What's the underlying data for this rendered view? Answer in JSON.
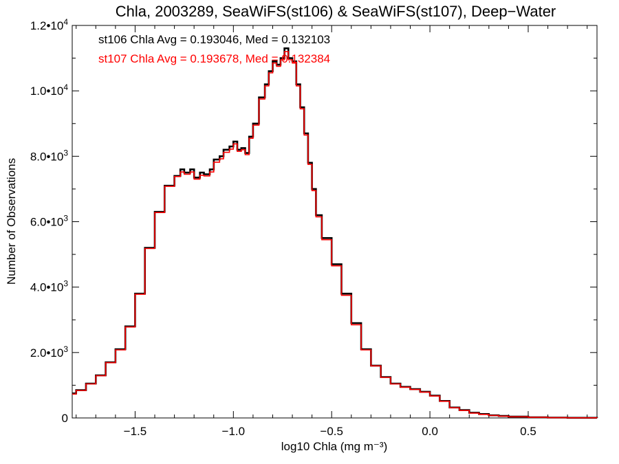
{
  "chart_data": {
    "type": "line",
    "step": true,
    "title": "Chla, 2003289, SeaWiFS(st106) & SeaWiFS(st107), Deep−Water",
    "xlabel": "log10 Chla (mg m⁻³)",
    "ylabel": "Number of Observations",
    "xlim": [
      -1.82,
      0.85
    ],
    "ylim": [
      0,
      12000
    ],
    "x_ticks": [
      -1.5,
      -1.0,
      -0.5,
      0.0,
      0.5
    ],
    "x_tick_labels": [
      "−1.5",
      "−1.0",
      "−0.5",
      "0.0",
      "0.5"
    ],
    "y_ticks": [
      0,
      2000,
      4000,
      6000,
      8000,
      10000,
      12000
    ],
    "y_tick_labels": [
      {
        "mant": "0",
        "exp": ""
      },
      {
        "mant": "2.0•10",
        "exp": "3"
      },
      {
        "mant": "4.0•10",
        "exp": "3"
      },
      {
        "mant": "6.0•10",
        "exp": "3"
      },
      {
        "mant": "8.0•10",
        "exp": "3"
      },
      {
        "mant": "1.0•10",
        "exp": "4"
      },
      {
        "mant": "1.2•10",
        "exp": "4"
      }
    ],
    "grid": false,
    "annotations": [
      {
        "text": "st106 Chla Avg = 0.193046, Med = 0.132103",
        "color": "#000000"
      },
      {
        "text": "st107 Chla Avg = 0.193678, Med = 0.132384",
        "color": "#ff0000"
      }
    ],
    "series": [
      {
        "color": "#000000",
        "x": [
          -1.82,
          -1.8,
          -1.75,
          -1.7,
          -1.65,
          -1.6,
          -1.55,
          -1.5,
          -1.45,
          -1.4,
          -1.35,
          -1.3,
          -1.27,
          -1.25,
          -1.22,
          -1.2,
          -1.17,
          -1.15,
          -1.12,
          -1.1,
          -1.07,
          -1.05,
          -1.02,
          -1.0,
          -0.98,
          -0.96,
          -0.94,
          -0.92,
          -0.9,
          -0.87,
          -0.84,
          -0.82,
          -0.8,
          -0.78,
          -0.76,
          -0.74,
          -0.72,
          -0.7,
          -0.68,
          -0.66,
          -0.64,
          -0.62,
          -0.6,
          -0.58,
          -0.55,
          -0.5,
          -0.45,
          -0.4,
          -0.35,
          -0.3,
          -0.25,
          -0.2,
          -0.15,
          -0.1,
          -0.05,
          0.0,
          0.05,
          0.1,
          0.15,
          0.2,
          0.25,
          0.3,
          0.35,
          0.4,
          0.5,
          0.6,
          0.7,
          0.85
        ],
        "y": [
          750,
          850,
          1050,
          1300,
          1700,
          2100,
          2800,
          3800,
          5200,
          6300,
          7100,
          7400,
          7600,
          7500,
          7600,
          7350,
          7500,
          7450,
          7600,
          7900,
          8000,
          8200,
          8300,
          8450,
          8200,
          8250,
          8100,
          8600,
          9000,
          9800,
          10200,
          10600,
          10900,
          10800,
          11000,
          11300,
          11000,
          10900,
          10200,
          9500,
          8700,
          7800,
          7000,
          6200,
          5500,
          4700,
          3800,
          2900,
          2100,
          1600,
          1250,
          1050,
          950,
          880,
          800,
          680,
          520,
          320,
          240,
          160,
          120,
          80,
          60,
          40,
          20,
          10,
          5,
          0
        ]
      },
      {
        "color": "#ff0000",
        "x": [
          -1.82,
          -1.8,
          -1.75,
          -1.7,
          -1.65,
          -1.6,
          -1.55,
          -1.5,
          -1.45,
          -1.4,
          -1.35,
          -1.3,
          -1.27,
          -1.25,
          -1.22,
          -1.2,
          -1.17,
          -1.15,
          -1.12,
          -1.1,
          -1.07,
          -1.05,
          -1.02,
          -1.0,
          -0.98,
          -0.96,
          -0.94,
          -0.92,
          -0.9,
          -0.87,
          -0.84,
          -0.82,
          -0.8,
          -0.78,
          -0.76,
          -0.74,
          -0.72,
          -0.7,
          -0.68,
          -0.66,
          -0.64,
          -0.62,
          -0.6,
          -0.58,
          -0.55,
          -0.5,
          -0.45,
          -0.4,
          -0.35,
          -0.3,
          -0.25,
          -0.2,
          -0.15,
          -0.1,
          -0.05,
          0.0,
          0.05,
          0.1,
          0.15,
          0.2,
          0.25,
          0.3,
          0.35,
          0.4,
          0.5,
          0.6,
          0.7,
          0.85
        ],
        "y": [
          730,
          840,
          1040,
          1290,
          1690,
          2080,
          2780,
          3780,
          5180,
          6280,
          7080,
          7380,
          7520,
          7450,
          7520,
          7300,
          7420,
          7400,
          7520,
          7820,
          7920,
          8120,
          8220,
          8380,
          8150,
          8200,
          8050,
          8550,
          8950,
          9750,
          10150,
          10550,
          10850,
          10750,
          10950,
          11200,
          10950,
          10850,
          10150,
          9450,
          8650,
          7750,
          6950,
          6150,
          5450,
          4650,
          3750,
          2850,
          2080,
          1590,
          1240,
          1040,
          940,
          870,
          790,
          670,
          510,
          310,
          230,
          150,
          110,
          75,
          55,
          35,
          18,
          8,
          4,
          0
        ]
      }
    ]
  }
}
